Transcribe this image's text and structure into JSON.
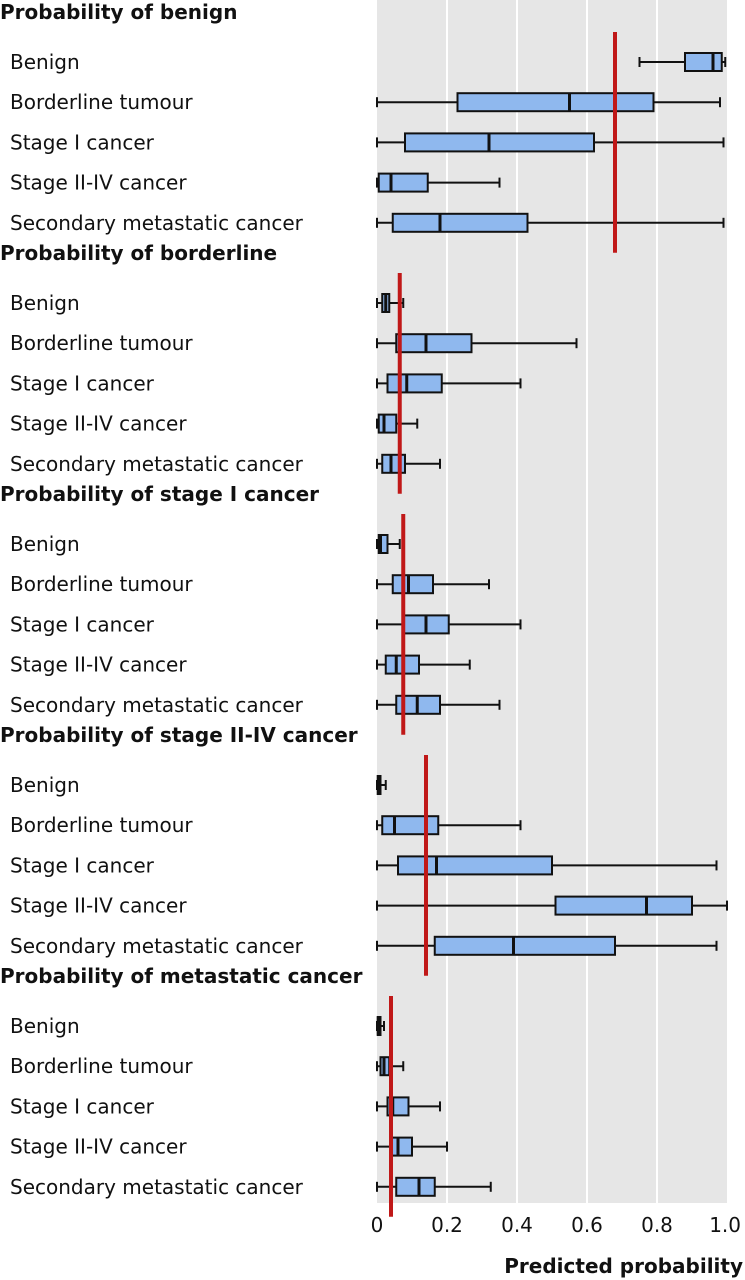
{
  "chart_data": {
    "type": "box",
    "xlabel": "Predicted probability",
    "xlim": [
      0,
      1.0
    ],
    "xticks": [
      0,
      0.2,
      0.4,
      0.6,
      0.8,
      1.0
    ],
    "xtick_labels": [
      "0",
      "0.2",
      "0.4",
      "0.6",
      "0.8",
      "1.0"
    ],
    "grid": true,
    "colors": {
      "box_fill": "#8fb8ee",
      "reference_line": "#c01818",
      "plot_background": "#e6e6e6"
    },
    "groups": [
      {
        "label": "Probability of benign",
        "reference": 0.68,
        "rows": [
          {
            "label": "Benign",
            "min": 0.75,
            "q1": 0.88,
            "median": 0.96,
            "q3": 0.985,
            "max": 0.995
          },
          {
            "label": "Borderline tumour",
            "min": 0.0,
            "q1": 0.23,
            "median": 0.55,
            "q3": 0.79,
            "max": 0.98
          },
          {
            "label": "Stage I cancer",
            "min": 0.0,
            "q1": 0.08,
            "median": 0.32,
            "q3": 0.62,
            "max": 0.99
          },
          {
            "label": "Stage II-IV cancer",
            "min": 0.0,
            "q1": 0.005,
            "median": 0.04,
            "q3": 0.145,
            "max": 0.35
          },
          {
            "label": "Secondary metastatic cancer",
            "min": 0.0,
            "q1": 0.045,
            "median": 0.18,
            "q3": 0.43,
            "max": 0.99
          }
        ]
      },
      {
        "label": "Probability of borderline",
        "reference": 0.065,
        "rows": [
          {
            "label": "Benign",
            "min": 0.0,
            "q1": 0.015,
            "median": 0.025,
            "q3": 0.035,
            "max": 0.075
          },
          {
            "label": "Borderline tumour",
            "min": 0.0,
            "q1": 0.055,
            "median": 0.14,
            "q3": 0.27,
            "max": 0.57
          },
          {
            "label": "Stage I cancer",
            "min": 0.0,
            "q1": 0.03,
            "median": 0.085,
            "q3": 0.185,
            "max": 0.41
          },
          {
            "label": "Stage II-IV cancer",
            "min": 0.0,
            "q1": 0.005,
            "median": 0.02,
            "q3": 0.055,
            "max": 0.115
          },
          {
            "label": "Secondary metastatic cancer",
            "min": 0.0,
            "q1": 0.015,
            "median": 0.04,
            "q3": 0.08,
            "max": 0.18
          }
        ]
      },
      {
        "label": "Probability of stage I cancer",
        "reference": 0.075,
        "rows": [
          {
            "label": "Benign",
            "min": 0.0,
            "q1": 0.005,
            "median": 0.01,
            "q3": 0.03,
            "max": 0.065
          },
          {
            "label": "Borderline tumour",
            "min": 0.0,
            "q1": 0.045,
            "median": 0.09,
            "q3": 0.16,
            "max": 0.32
          },
          {
            "label": "Stage I cancer",
            "min": 0.0,
            "q1": 0.075,
            "median": 0.14,
            "q3": 0.205,
            "max": 0.41
          },
          {
            "label": "Stage II-IV cancer",
            "min": 0.0,
            "q1": 0.025,
            "median": 0.055,
            "q3": 0.12,
            "max": 0.265
          },
          {
            "label": "Secondary metastatic cancer",
            "min": 0.0,
            "q1": 0.055,
            "median": 0.115,
            "q3": 0.18,
            "max": 0.35
          }
        ]
      },
      {
        "label": "Probability of stage II-IV cancer",
        "reference": 0.14,
        "rows": [
          {
            "label": "Benign",
            "min": 0.0,
            "q1": 0.002,
            "median": 0.005,
            "q3": 0.01,
            "max": 0.025
          },
          {
            "label": "Borderline tumour",
            "min": 0.0,
            "q1": 0.015,
            "median": 0.05,
            "q3": 0.175,
            "max": 0.41
          },
          {
            "label": "Stage I cancer",
            "min": 0.0,
            "q1": 0.06,
            "median": 0.17,
            "q3": 0.5,
            "max": 0.97
          },
          {
            "label": "Stage II-IV cancer",
            "min": 0.0,
            "q1": 0.51,
            "median": 0.77,
            "q3": 0.9,
            "max": 1.0
          },
          {
            "label": "Secondary metastatic cancer",
            "min": 0.0,
            "q1": 0.165,
            "median": 0.39,
            "q3": 0.68,
            "max": 0.97
          }
        ]
      },
      {
        "label": "Probability of metastatic cancer",
        "reference": 0.04,
        "rows": [
          {
            "label": "Benign",
            "min": 0.0,
            "q1": 0.002,
            "median": 0.004,
            "q3": 0.01,
            "max": 0.02
          },
          {
            "label": "Borderline tumour",
            "min": 0.0,
            "q1": 0.01,
            "median": 0.02,
            "q3": 0.035,
            "max": 0.075
          },
          {
            "label": "Stage I cancer",
            "min": 0.0,
            "q1": 0.03,
            "median": 0.045,
            "q3": 0.09,
            "max": 0.18
          },
          {
            "label": "Stage II-IV cancer",
            "min": 0.0,
            "q1": 0.04,
            "median": 0.06,
            "q3": 0.1,
            "max": 0.2
          },
          {
            "label": "Secondary metastatic cancer",
            "min": 0.0,
            "q1": 0.055,
            "median": 0.12,
            "q3": 0.165,
            "max": 0.325
          }
        ]
      }
    ]
  }
}
